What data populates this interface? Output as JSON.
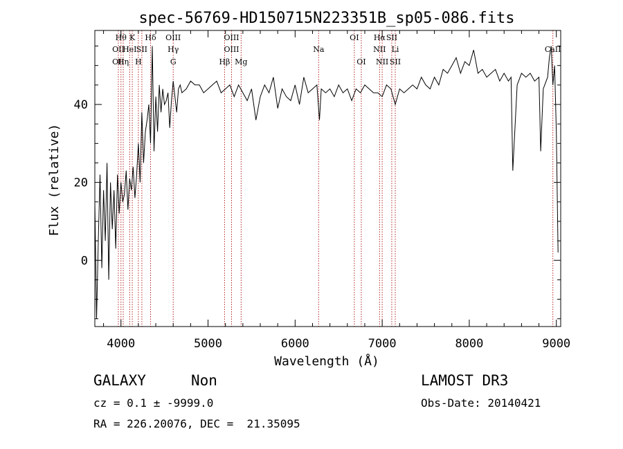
{
  "chart_data": {
    "type": "line",
    "title": "spec-56769-HD150715N223351B_sp05-086.fits",
    "xlabel": "Wavelength (Å)",
    "ylabel": "Flux (relative)",
    "xlim": [
      3700,
      9050
    ],
    "ylim": [
      -17,
      59
    ],
    "x_ticks": [
      4000,
      5000,
      6000,
      7000,
      8000,
      9000
    ],
    "y_ticks": [
      0,
      20,
      40
    ],
    "grid": false,
    "legend": "none",
    "series": [
      {
        "color": "#000000",
        "x": [
          3700,
          3720,
          3740,
          3760,
          3780,
          3800,
          3820,
          3840,
          3860,
          3880,
          3900,
          3920,
          3940,
          3960,
          3980,
          4000,
          4020,
          4040,
          4060,
          4080,
          4100,
          4120,
          4140,
          4160,
          4180,
          4200,
          4220,
          4240,
          4260,
          4280,
          4300,
          4320,
          4340,
          4360,
          4380,
          4400,
          4420,
          4440,
          4460,
          4480,
          4500,
          4520,
          4540,
          4560,
          4580,
          4600,
          4620,
          4640,
          4660,
          4680,
          4700,
          4750,
          4800,
          4850,
          4900,
          4950,
          5000,
          5050,
          5100,
          5150,
          5200,
          5250,
          5300,
          5350,
          5400,
          5450,
          5500,
          5550,
          5600,
          5650,
          5700,
          5750,
          5800,
          5850,
          5900,
          5950,
          6000,
          6050,
          6100,
          6150,
          6200,
          6250,
          6280,
          6300,
          6350,
          6400,
          6450,
          6500,
          6550,
          6600,
          6650,
          6700,
          6750,
          6800,
          6850,
          6900,
          6950,
          7000,
          7050,
          7100,
          7150,
          7200,
          7250,
          7300,
          7350,
          7400,
          7450,
          7500,
          7550,
          7600,
          7650,
          7700,
          7750,
          7800,
          7850,
          7900,
          7950,
          8000,
          8050,
          8100,
          8150,
          8200,
          8250,
          8300,
          8350,
          8400,
          8450,
          8480,
          8500,
          8550,
          8600,
          8650,
          8700,
          8750,
          8800,
          8820,
          8850,
          8900,
          8920,
          8940,
          8960,
          8980,
          9000,
          9020
        ],
        "values": [
          15,
          -15,
          5,
          22,
          -2,
          18,
          5,
          25,
          -5,
          20,
          8,
          18,
          3,
          22,
          12,
          20,
          15,
          17,
          23,
          13,
          21,
          18,
          24,
          16,
          22,
          30,
          20,
          38,
          25,
          33,
          36,
          40,
          30,
          55,
          28,
          42,
          33,
          45,
          38,
          44,
          40,
          41,
          43,
          34,
          41,
          46,
          42,
          38,
          44,
          45,
          43,
          44,
          46,
          45,
          45,
          43,
          44,
          45,
          46,
          43,
          44,
          45,
          42,
          45,
          43,
          41,
          44,
          36,
          42,
          45,
          43,
          47,
          39,
          44,
          42,
          41,
          45,
          40,
          47,
          43,
          44,
          45,
          36,
          44,
          43,
          44,
          42,
          45,
          43,
          44,
          41,
          44,
          43,
          45,
          44,
          43,
          43,
          42,
          45,
          44,
          40,
          44,
          43,
          44,
          45,
          44,
          47,
          45,
          44,
          47,
          45,
          49,
          48,
          50,
          52,
          48,
          51,
          50,
          54,
          48,
          49,
          47,
          48,
          49,
          46,
          48,
          46,
          47,
          23,
          45,
          48,
          47,
          48,
          46,
          47,
          28,
          44,
          47,
          52,
          55,
          45,
          50,
          33,
          2
        ]
      }
    ],
    "annotations": [
      {
        "x": 3970,
        "labels": [
          "OII",
          "OII"
        ]
      },
      {
        "x": 4000,
        "labels": [
          "Hθ"
        ]
      },
      {
        "x": 4026,
        "labels": [
          "Hη"
        ]
      },
      {
        "x": 4100,
        "labels": [
          "HeI"
        ]
      },
      {
        "x": 4130,
        "labels": [
          "K"
        ]
      },
      {
        "x": 4200,
        "labels": [
          "H"
        ]
      },
      {
        "x": 4240,
        "labels": [
          "SII"
        ]
      },
      {
        "x": 4340,
        "labels": [
          "Hδ"
        ]
      },
      {
        "x": 4600,
        "labels": [
          "OIII",
          "Hγ",
          "G"
        ]
      },
      {
        "x": 5190,
        "labels": [
          "Hβ"
        ]
      },
      {
        "x": 5270,
        "labels": [
          "OIII",
          "OIII"
        ]
      },
      {
        "x": 5380,
        "labels": [
          "Mg"
        ]
      },
      {
        "x": 6270,
        "labels": [
          "Na"
        ]
      },
      {
        "x": 6680,
        "labels": [
          "OI"
        ]
      },
      {
        "x": 6760,
        "labels": [
          "OI"
        ]
      },
      {
        "x": 6970,
        "labels": [
          "Hα",
          "NII"
        ]
      },
      {
        "x": 7000,
        "labels": [
          "NII"
        ]
      },
      {
        "x": 7110,
        "labels": [
          "SII"
        ]
      },
      {
        "x": 7150,
        "labels": [
          "Li",
          "SII"
        ]
      },
      {
        "x": 8960,
        "labels": [
          "CaII"
        ]
      }
    ]
  },
  "info": {
    "classification": "GALAXY",
    "subclass": "Non",
    "survey": "LAMOST DR3",
    "cz": "cz = 0.1 ± -9999.0",
    "obs_date": "Obs-Date: 20140421",
    "coords": "RA = 226.20076, DEC =  21.35095"
  }
}
